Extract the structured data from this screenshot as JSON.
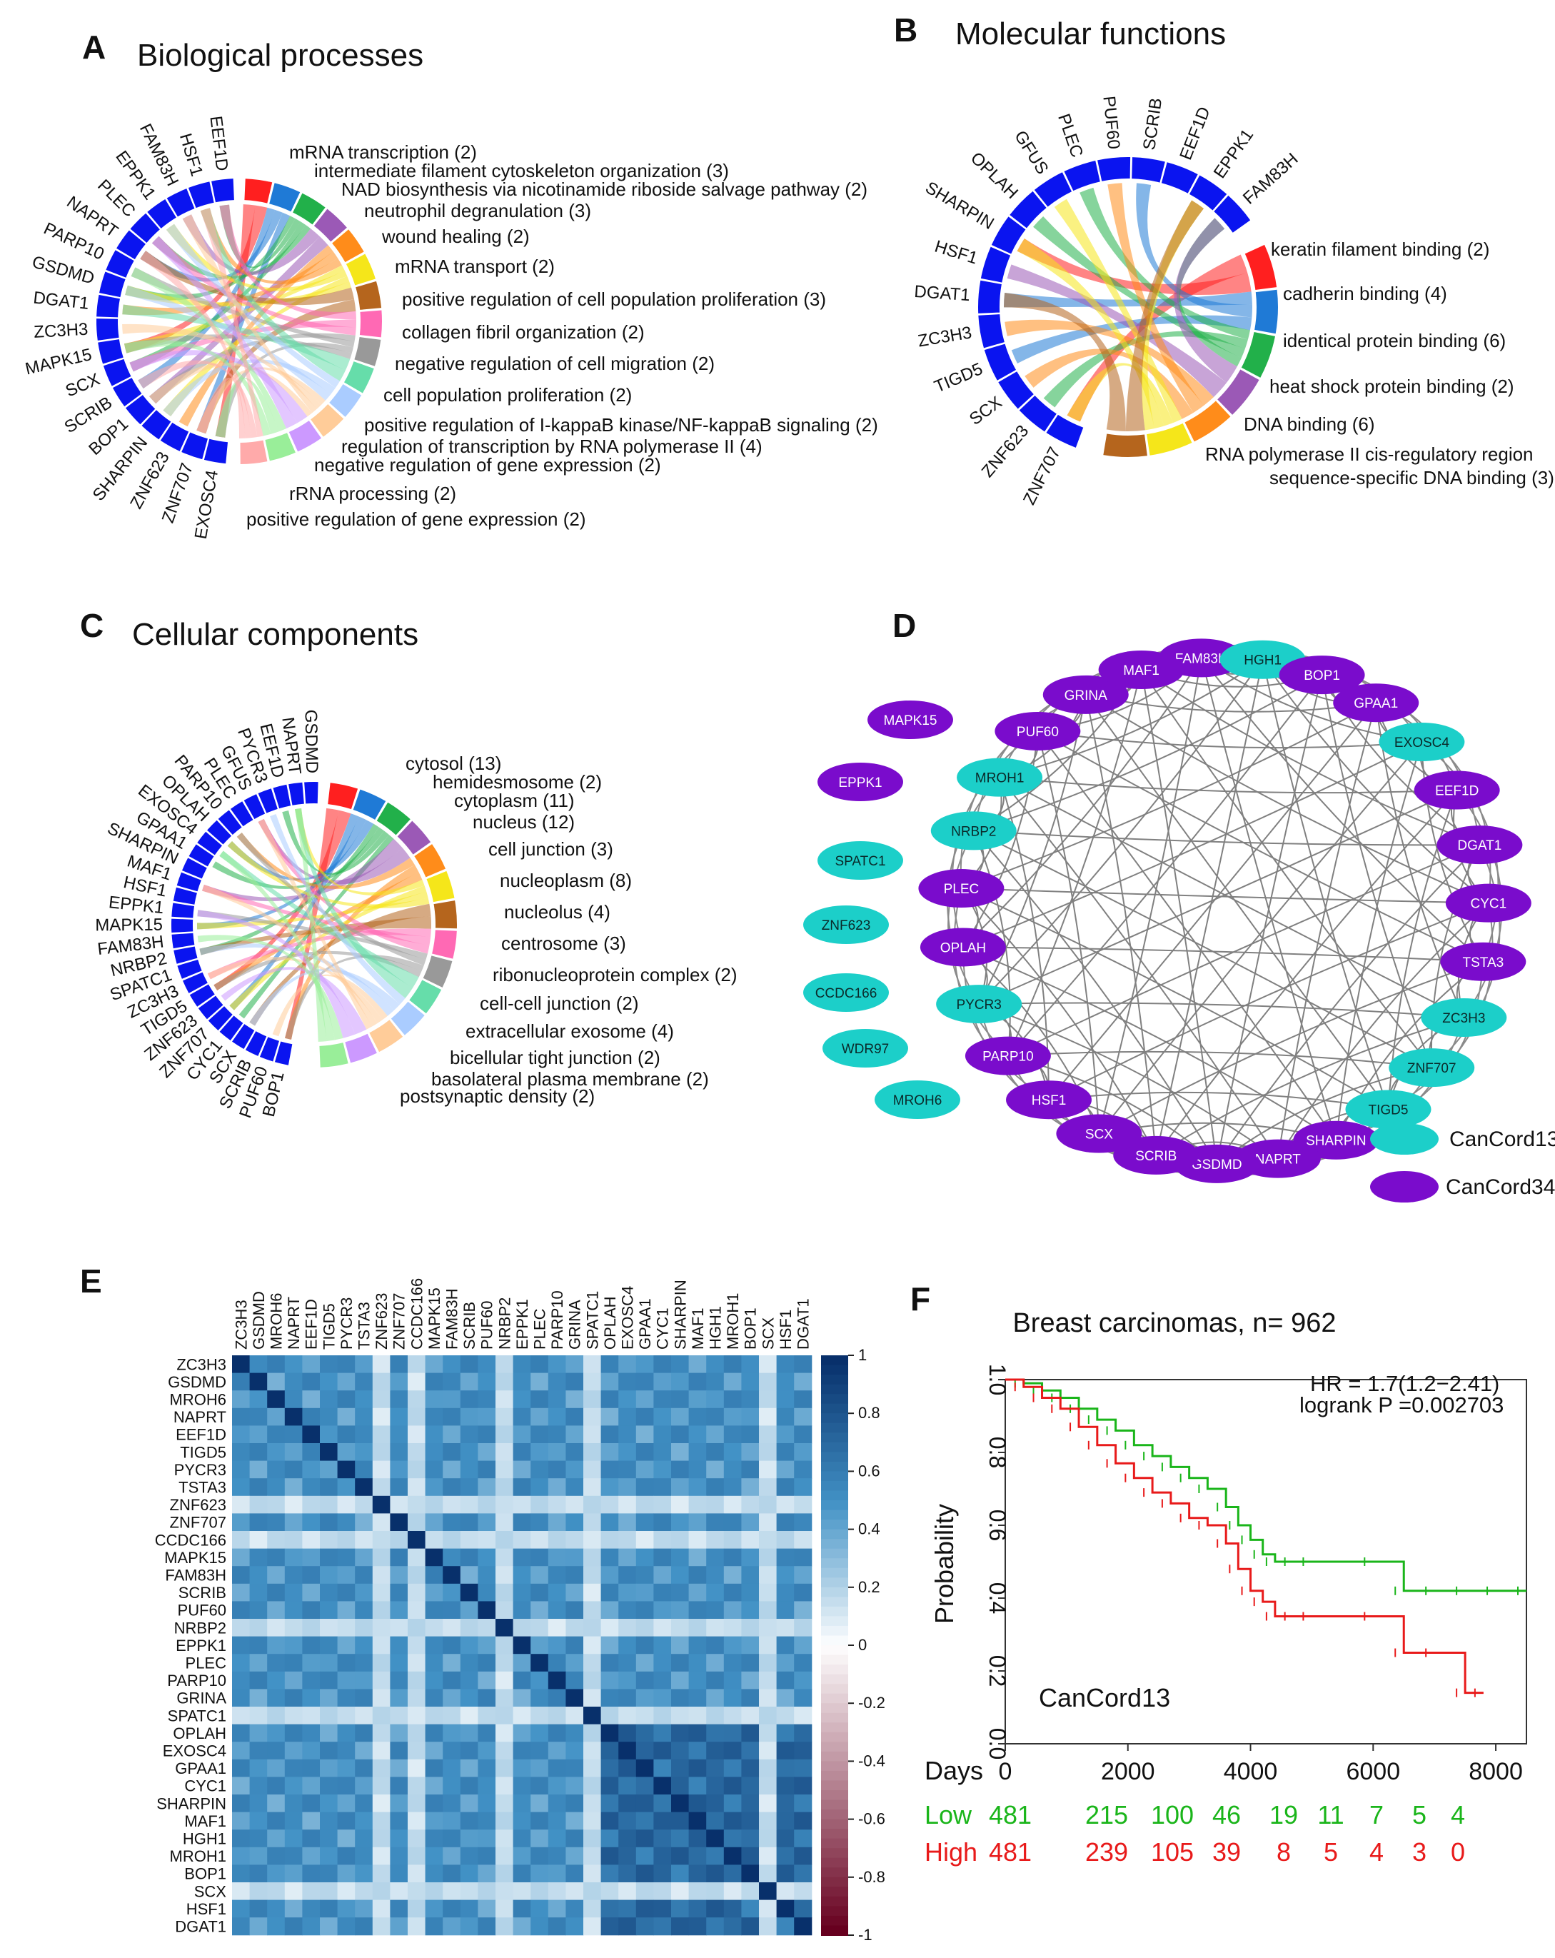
{
  "figure": {
    "panels": {
      "A": {
        "label": "A",
        "title": "Biological processes",
        "genes": [
          "EXOSC4",
          "ZNF707",
          "ZNF623",
          "SHARPIN",
          "BOP1",
          "SCRIB",
          "SCX",
          "MAPK15",
          "ZC3H3",
          "DGAT1",
          "GSDMD",
          "PARP10",
          "NAPRT",
          "PLEC",
          "EPPK1",
          "FAM83H",
          "HSF1",
          "EEF1D"
        ],
        "terms": [
          "mRNA transcription (2)",
          "intermediate filament cytoskeleton organization (3)",
          "NAD biosynthesis via nicotinamide riboside salvage pathway (2)",
          "neutrophil degranulation (3)",
          "wound healing (2)",
          "mRNA transport (2)",
          "positive regulation of cell population proliferation (3)",
          "collagen fibril organization (2)",
          "negative regulation of cell migration (2)",
          "cell population proliferation (2)",
          "positive regulation of I-kappaB kinase/NF-kappaB signaling (2)",
          "regulation of transcription by RNA polymerase II (4)",
          "negative regulation of gene expression (2)",
          "rRNA processing (2)",
          "positive regulation of gene expression (2)"
        ]
      },
      "B": {
        "label": "B",
        "title": "Molecular functions",
        "genes": [
          "ZNF707",
          "ZNF623",
          "SCX",
          "TIGD5",
          "ZC3H3",
          "DGAT1",
          "HSF1",
          "SHARPIN",
          "OPLAH",
          "GFUS",
          "PLEC",
          "PUF60",
          "SCRIB",
          "EEF1D",
          "EPPK1",
          "FAM83H"
        ],
        "terms": [
          "keratin filament binding (2)",
          "cadherin binding (4)",
          "identical protein binding (6)",
          "heat shock protein binding (2)",
          "DNA binding (6)",
          "RNA polymerase II cis-regulatory region",
          "sequence-specific DNA binding (3)"
        ]
      },
      "C": {
        "label": "C",
        "title": "Cellular components",
        "genes": [
          "BOP1",
          "PUF60",
          "SCRIB",
          "SCX",
          "CYC1",
          "ZNF707",
          "ZNF623",
          "TIGD5",
          "ZC3H3",
          "SPATC1",
          "NRBP2",
          "FAM83H",
          "MAPK15",
          "EPPK1",
          "HSF1",
          "MAF1",
          "SHARPIN",
          "GPAA1",
          "EXOSC4",
          "OPLAH",
          "PARP10",
          "PLEC",
          "GFUS",
          "PYCR3",
          "EEF1D",
          "NAPRT",
          "GSDMD"
        ],
        "terms": [
          "cytosol (13)",
          "hemidesmosome (2)",
          "cytoplasm (11)",
          "nucleus (12)",
          "cell junction (3)",
          "nucleoplasm (8)",
          "nucleolus (4)",
          "centrosome (3)",
          "ribonucleoprotein complex (2)",
          "cell-cell junction (2)",
          "extracellular exosome (4)",
          "bicellular tight junction (2)",
          "basolateral plasma membrane (2)",
          "postsynaptic density (2)"
        ]
      },
      "D": {
        "label": "D",
        "ring_nodes": [
          {
            "name": "FAM83H",
            "group": "CanCord34"
          },
          {
            "name": "HGH1",
            "group": "CanCord13"
          },
          {
            "name": "BOP1",
            "group": "CanCord34"
          },
          {
            "name": "GPAA1",
            "group": "CanCord34"
          },
          {
            "name": "EXOSC4",
            "group": "CanCord13"
          },
          {
            "name": "EEF1D",
            "group": "CanCord34"
          },
          {
            "name": "DGAT1",
            "group": "CanCord34"
          },
          {
            "name": "CYC1",
            "group": "CanCord34"
          },
          {
            "name": "TSTA3",
            "group": "CanCord34"
          },
          {
            "name": "ZC3H3",
            "group": "CanCord13"
          },
          {
            "name": "ZNF707",
            "group": "CanCord13"
          },
          {
            "name": "TIGD5",
            "group": "CanCord13"
          },
          {
            "name": "SHARPIN",
            "group": "CanCord34"
          },
          {
            "name": "NAPRT",
            "group": "CanCord34"
          },
          {
            "name": "GSDMD",
            "group": "CanCord34"
          },
          {
            "name": "SCRIB",
            "group": "CanCord34"
          },
          {
            "name": "SCX",
            "group": "CanCord34"
          },
          {
            "name": "HSF1",
            "group": "CanCord34"
          },
          {
            "name": "PARP10",
            "group": "CanCord34"
          },
          {
            "name": "PYCR3",
            "group": "CanCord13"
          },
          {
            "name": "OPLAH",
            "group": "CanCord34"
          },
          {
            "name": "PLEC",
            "group": "CanCord34"
          },
          {
            "name": "NRBP2",
            "group": "CanCord13"
          },
          {
            "name": "MROH1",
            "group": "CanCord13"
          },
          {
            "name": "PUF60",
            "group": "CanCord34"
          },
          {
            "name": "GRINA",
            "group": "CanCord34"
          },
          {
            "name": "MAF1",
            "group": "CanCord34"
          }
        ],
        "isolated_nodes": [
          {
            "name": "MAPK15",
            "group": "CanCord34"
          },
          {
            "name": "EPPK1",
            "group": "CanCord34"
          },
          {
            "name": "SPATC1",
            "group": "CanCord13"
          },
          {
            "name": "ZNF623",
            "group": "CanCord13"
          },
          {
            "name": "CCDC166",
            "group": "CanCord13"
          },
          {
            "name": "WDR97",
            "group": "CanCord13"
          },
          {
            "name": "MROH6",
            "group": "CanCord13"
          }
        ],
        "legend": [
          {
            "label": "CanCord13",
            "color": "#1ccfc9"
          },
          {
            "label": "CanCord34",
            "color": "#7a0ccc"
          }
        ]
      },
      "E": {
        "label": "E",
        "genes": [
          "ZC3H3",
          "GSDMD",
          "MROH6",
          "NAPRT",
          "EEF1D",
          "TIGD5",
          "PYCR3",
          "TSTA3",
          "ZNF623",
          "ZNF707",
          "CCDC166",
          "MAPK15",
          "FAM83H",
          "SCRIB",
          "PUF60",
          "NRBP2",
          "EPPK1",
          "PLEC",
          "PARP10",
          "GRINA",
          "SPATC1",
          "OPLAH",
          "EXOSC4",
          "GPAA1",
          "CYC1",
          "SHARPIN",
          "MAF1",
          "HGH1",
          "MROH1",
          "BOP1",
          "SCX",
          "HSF1",
          "DGAT1"
        ],
        "colorbar_ticks": [
          "1",
          "0.8",
          "0.6",
          "0.4",
          "0.2",
          "0",
          "-0.2",
          "-0.4",
          "-0.6",
          "-0.8",
          "-1"
        ]
      },
      "F": {
        "label": "F"
      }
    }
  },
  "chart_data": {
    "type": "line",
    "title": "Breast carcinomas, n= 962",
    "xlabel": "Days",
    "ylabel": "Probability",
    "xlim": [
      0,
      8500
    ],
    "ylim": [
      0,
      1.0
    ],
    "xticks": [
      "0",
      "2000",
      "4000",
      "6000",
      "8000"
    ],
    "yticks": [
      "0.0",
      "0.2",
      "0.4",
      "0.6",
      "0.8",
      "1.0"
    ],
    "annotation_hr": "HR = 1.7(1.2−2.41)",
    "annotation_logrank": "logrank P =0.002703",
    "panel_note": "CanCord13",
    "series": [
      {
        "name": "Low",
        "color": "#1ab51a",
        "x": [
          0,
          300,
          600,
          900,
          1200,
          1500,
          1800,
          2100,
          2400,
          2700,
          3000,
          3300,
          3600,
          3800,
          4000,
          4200,
          4400,
          4700,
          5000,
          6000,
          6500,
          7000,
          7500,
          8000,
          8500
        ],
        "y": [
          1.0,
          0.99,
          0.97,
          0.95,
          0.92,
          0.89,
          0.86,
          0.82,
          0.79,
          0.76,
          0.73,
          0.7,
          0.65,
          0.6,
          0.56,
          0.52,
          0.5,
          0.5,
          0.5,
          0.5,
          0.42,
          0.42,
          0.42,
          0.42,
          0.42
        ]
      },
      {
        "name": "High",
        "color": "#e81a1a",
        "x": [
          0,
          300,
          600,
          900,
          1200,
          1500,
          1800,
          2100,
          2400,
          2700,
          3000,
          3300,
          3600,
          3800,
          4000,
          4200,
          4400,
          4700,
          5000,
          6000,
          6500,
          7000,
          7500,
          7800
        ],
        "y": [
          1.0,
          0.98,
          0.95,
          0.92,
          0.87,
          0.82,
          0.77,
          0.73,
          0.69,
          0.66,
          0.62,
          0.6,
          0.55,
          0.48,
          0.42,
          0.39,
          0.35,
          0.35,
          0.35,
          0.35,
          0.25,
          0.25,
          0.14,
          0.14
        ]
      }
    ],
    "risk_table": {
      "label": "Days",
      "rows": [
        {
          "name": "Low",
          "values": [
            "481",
            "215",
            "100",
            "46",
            "19",
            "11",
            "7",
            "5",
            "4"
          ],
          "color": "#1ab51a"
        },
        {
          "name": "High",
          "values": [
            "481",
            "239",
            "105",
            "39",
            "8",
            "5",
            "4",
            "3",
            "0"
          ],
          "color": "#e81a1a"
        }
      ]
    }
  }
}
